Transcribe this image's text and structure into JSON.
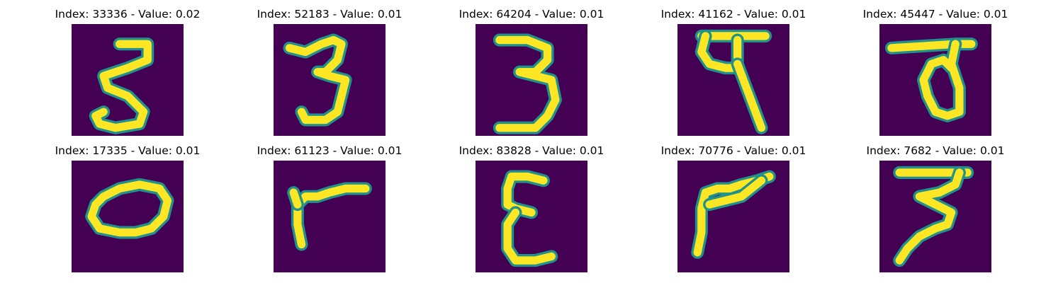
{
  "colors": {
    "background": "#440154",
    "edge": "#21918c",
    "stroke": "#fde725"
  },
  "images": [
    {
      "index": "33336",
      "value": "0.02",
      "title": "Index: 33336 - Value: 0.02",
      "depicts": "handwritten-digit-3",
      "paths": [
        "M12,5 L19,5 L19,9 L14,11 L8,13 L9,16 L14,18 L18,22 L17,25 L11,26 L7,25 L6,23 L8,22"
      ]
    },
    {
      "index": "52183",
      "value": "0.01",
      "title": "Index: 52183 - Value: 0.01",
      "depicts": "handwritten-digit-3",
      "paths": [
        "M4,6 L8,7 L12,5 L15,4 L17,5 L16,9 L13,12 L11,12 L14,13 L18,14 L17,18 L16,22 L13,24 L8,24 L7,22"
      ]
    },
    {
      "index": "64204",
      "value": "0.01",
      "title": "Index: 64204 - Value: 0.01",
      "depicts": "handwritten-digit-3",
      "paths": [
        "M6,4 L13,4 L18,6 L18,9 L15,12 L11,12 L15,13 L19,14 L20,19 L18,23 L15,26 L6,26"
      ]
    },
    {
      "index": "41162",
      "value": "0.01",
      "title": "Index: 41162 - Value: 0.01",
      "depicts": "handwritten-character-pa",
      "paths": [
        "M6,3 L22,3",
        "M7,3 L6,7 L8,10 L12,11 L15,11 L15,4",
        "M15,10 L18,18 L21,26"
      ]
    },
    {
      "index": "45447",
      "value": "0.01",
      "title": "Index: 45447 - Value: 0.01",
      "depicts": "handwritten-character-pa",
      "paths": [
        "M3,6 L19,5 L23,5",
        "M19,5 L18,10 L20,16 L20,22 L17,23 L14,22 L12,18 L11,14 L13,10 L16,9 L18,11"
      ]
    },
    {
      "index": "17335",
      "value": "0.01",
      "title": "Index: 17335 - Value: 0.01",
      "depicts": "handwritten-digit-0",
      "paths": [
        "M8,9 L12,7 L17,6 L22,7 L24,10 L23,14 L20,17 L16,18 L12,18 L7,17 L5,14 L6,11 L8,9"
      ]
    },
    {
      "index": "61123",
      "value": "0.01",
      "title": "Index: 61123 - Value: 0.01",
      "depicts": "handwritten-stroke",
      "paths": [
        "M7,21 L6,16 L6,11 L8,9 L11,9 L14,8 L18,7 L23,7",
        "M6,11 L5,8"
      ]
    },
    {
      "index": "83828",
      "value": "0.01",
      "title": "Index: 83828 - Value: 0.01",
      "depicts": "handwritten-character-epsilon",
      "paths": [
        "M17,5 L13,4 L9,4 L8,7 L8,11 L10,12 L14,13",
        "M10,13 L8,16 L8,22 L10,25 L15,25 L19,24"
      ]
    },
    {
      "index": "70776",
      "value": "0.01",
      "title": "Index: 70776 - Value: 0.01",
      "depicts": "handwritten-stroke",
      "paths": [
        "M5,23 L6,18 L6,12 L7,8 L10,7 L13,7 L16,6 L20,5 L23,4",
        "M21,5 L16,9 L12,10 L8,11"
      ]
    },
    {
      "index": "7682",
      "value": "0.01",
      "title": "Index: 7682 - Value: 0.01",
      "depicts": "handwritten-character-zha",
      "paths": [
        "M5,3 L22,3",
        "M20,3 L19,6 L15,8 L10,9 L14,11 L18,13 L17,16 L14,17 L10,19 L7,22 L5,25"
      ]
    }
  ]
}
